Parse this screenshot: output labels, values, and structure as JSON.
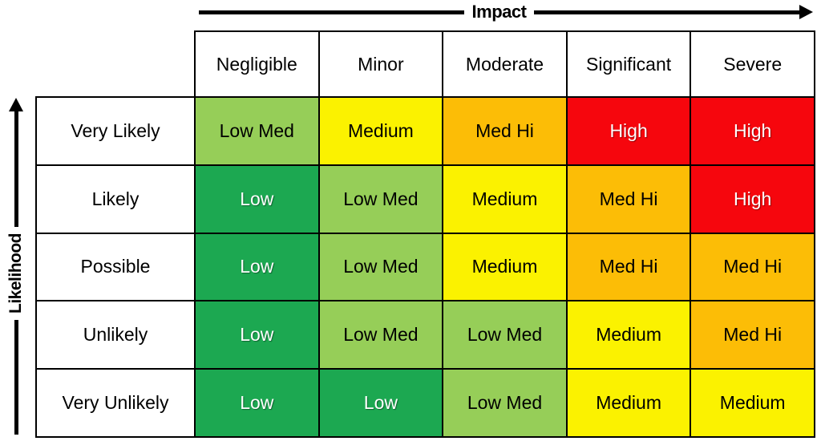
{
  "axes": {
    "impact_label": "Impact",
    "likelihood_label": "Likelihood"
  },
  "levels": {
    "Low": {
      "bg": "#1CA851",
      "fg": "#FFFFFF"
    },
    "Low Med": {
      "bg": "#96CE58",
      "fg": "#000000"
    },
    "Medium": {
      "bg": "#FBF200",
      "fg": "#000000"
    },
    "Med Hi": {
      "bg": "#FCBD06",
      "fg": "#000000"
    },
    "High": {
      "bg": "#F6060D",
      "fg": "#FFFFFF"
    }
  },
  "chart_data": {
    "type": "heatmap",
    "xlabel": "Impact",
    "ylabel": "Likelihood",
    "columns": [
      "Negligible",
      "Minor",
      "Moderate",
      "Significant",
      "Severe"
    ],
    "rows": [
      "Very Likely",
      "Likely",
      "Possible",
      "Unlikely",
      "Very Unlikely"
    ],
    "cells": [
      [
        "Low Med",
        "Medium",
        "Med Hi",
        "High",
        "High"
      ],
      [
        "Low",
        "Low Med",
        "Medium",
        "Med Hi",
        "High"
      ],
      [
        "Low",
        "Low Med",
        "Medium",
        "Med Hi",
        "Med Hi"
      ],
      [
        "Low",
        "Low Med",
        "Low Med",
        "Medium",
        "Med Hi"
      ],
      [
        "Low",
        "Low",
        "Low Med",
        "Medium",
        "Medium"
      ]
    ],
    "legend_position": "none",
    "grid": true
  }
}
